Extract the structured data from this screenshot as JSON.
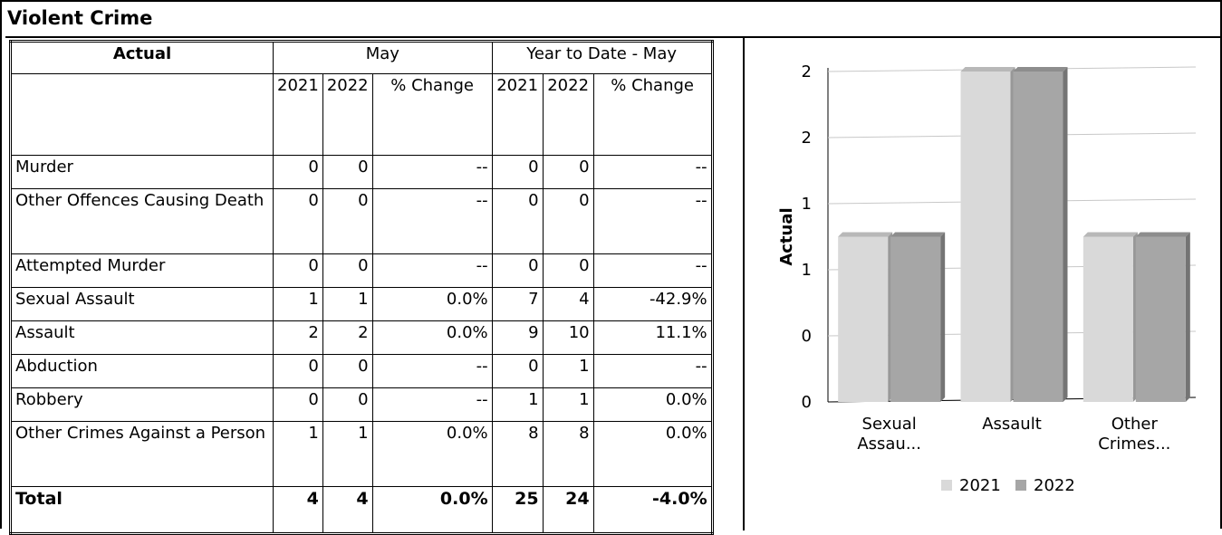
{
  "title": "Violent Crime",
  "table": {
    "header": {
      "actual": "Actual",
      "may": "May",
      "ytd": "Year to Date - May",
      "columns": [
        "2021",
        "2022",
        "% Change",
        "2021",
        "2022",
        "% Change"
      ]
    },
    "rows": [
      [
        "Murder",
        "0",
        "0",
        "--",
        "0",
        "0",
        "--"
      ],
      [
        "Other Offences Causing Death",
        "0",
        "0",
        "--",
        "0",
        "0",
        "--"
      ],
      [
        "Attempted Murder",
        "0",
        "0",
        "--",
        "0",
        "0",
        "--"
      ],
      [
        "Sexual Assault",
        "1",
        "1",
        "0.0%",
        "7",
        "4",
        "-42.9%"
      ],
      [
        "Assault",
        "2",
        "2",
        "0.0%",
        "9",
        "10",
        "11.1%"
      ],
      [
        "Abduction",
        "0",
        "0",
        "--",
        "0",
        "1",
        "--"
      ],
      [
        "Robbery",
        "0",
        "0",
        "--",
        "1",
        "1",
        "0.0%"
      ],
      [
        "Other Crimes Against a Person",
        "1",
        "1",
        "0.0%",
        "8",
        "8",
        "0.0%"
      ]
    ],
    "total": [
      "Total",
      "4",
      "4",
      "0.0%",
      "25",
      "24",
      "-4.0%"
    ]
  },
  "chart_data": {
    "type": "bar",
    "ylabel": "Actual",
    "categories": [
      "Sexual Assau...",
      "Assault",
      "Other Crimes..."
    ],
    "series": [
      {
        "name": "2021",
        "color": "#d9d9d9",
        "values": [
          1,
          2,
          1
        ]
      },
      {
        "name": "2022",
        "color": "#a6a6a6",
        "values": [
          1,
          2,
          1
        ]
      }
    ],
    "ylim": [
      0,
      2
    ],
    "yticks": [
      0,
      {
        "value": 0.4,
        "label": "0"
      },
      {
        "value": 0.8,
        "label": "1"
      },
      {
        "value": 1.2,
        "label": "1"
      },
      {
        "value": 1.6,
        "label": "2"
      },
      2
    ],
    "grid": true,
    "legend": "bottom"
  }
}
